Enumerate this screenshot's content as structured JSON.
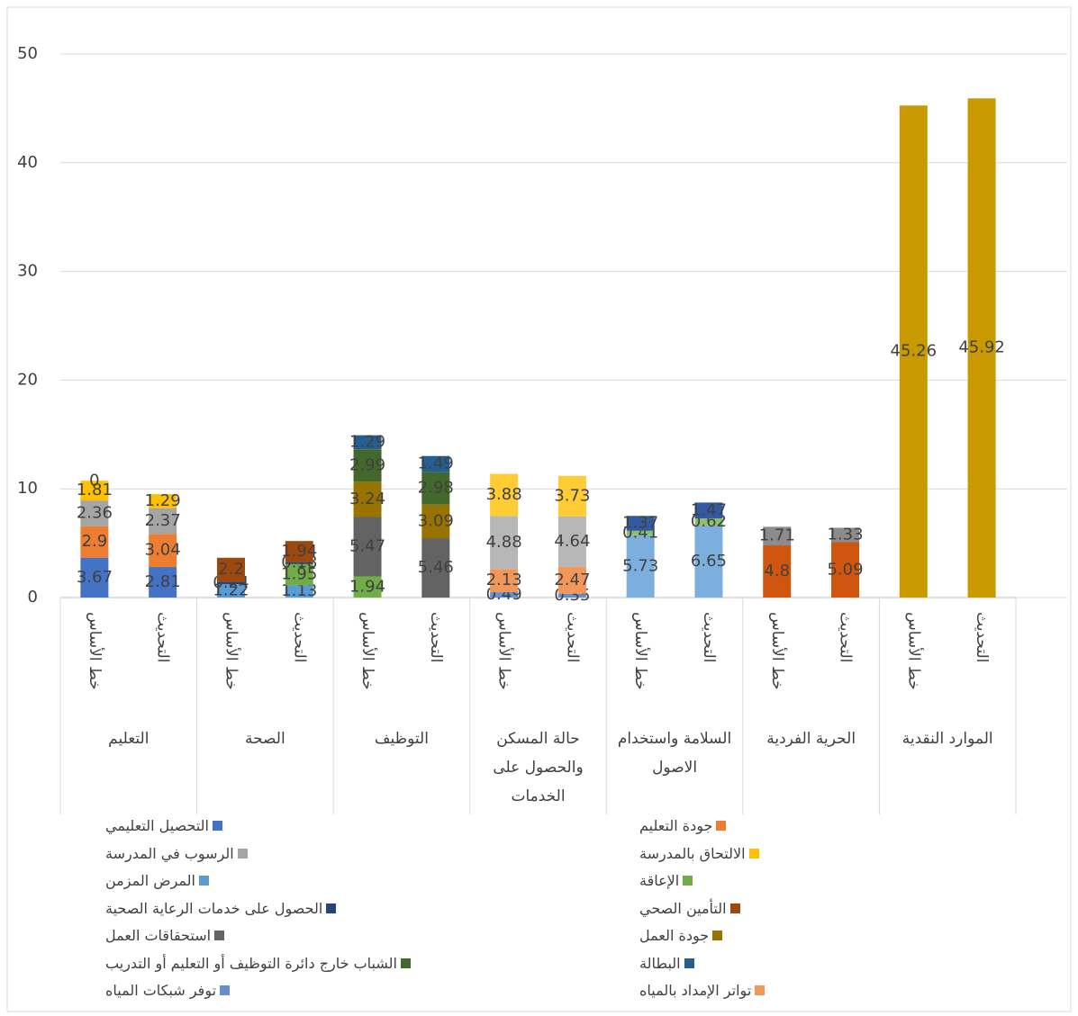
{
  "chart_data": {
    "type": "stacked_bar",
    "groups": [
      "التعليم",
      "الصحة",
      "التوظيف",
      "حالة المسكن والحصول على الخدمات",
      "السلامة واستخدام الاصول",
      "الحرية الفردية",
      "الموارد النقدية"
    ],
    "categories": [
      "خط الأساس",
      "التحديث",
      "خط الأساس",
      "التحديث",
      "خط الأساس",
      "التحديث",
      "خط الأساس",
      "التحديث",
      "خط الأساس",
      "التحديث",
      "خط الأساس",
      "التحديث",
      "خط الأساس",
      "التحديث"
    ],
    "ylim": [
      0,
      50
    ],
    "yticks": [
      0,
      10,
      20,
      30,
      40,
      50
    ],
    "grid": true,
    "series": [
      {
        "name": "التحصيل التعليمي",
        "color": "#4472c4",
        "values": [
          3.67,
          2.81,
          null,
          null,
          null,
          null,
          null,
          null,
          null,
          null,
          null,
          null,
          null,
          null
        ]
      },
      {
        "name": "جودة التعليم",
        "color": "#ed7d31",
        "values": [
          2.9,
          3.04,
          null,
          null,
          null,
          null,
          null,
          null,
          null,
          null,
          null,
          null,
          null,
          null
        ]
      },
      {
        "name": "الرسوب في المدرسة",
        "color": "#a5a5a5",
        "values": [
          2.36,
          2.37,
          null,
          null,
          null,
          null,
          null,
          null,
          null,
          null,
          null,
          null,
          null,
          null
        ]
      },
      {
        "name": "الالتحاق بالمدرسة",
        "color": "#ffc000",
        "values": [
          1.81,
          1.29,
          null,
          null,
          null,
          null,
          null,
          null,
          null,
          null,
          null,
          null,
          null,
          null
        ]
      },
      {
        "name": "المرض المزمن",
        "color": "#5b9bd5",
        "values": [
          null,
          null,
          1.22,
          1.13,
          null,
          null,
          null,
          null,
          null,
          null,
          null,
          null,
          null,
          null
        ]
      },
      {
        "name": "الإعاقة",
        "color": "#70ad47",
        "values": [
          null,
          null,
          null,
          1.95,
          1.94,
          null,
          null,
          null,
          null,
          null,
          null,
          null,
          null,
          null
        ]
      },
      {
        "name": "الحصول على خدمات الرعاية الصحية",
        "color": "#264478",
        "values": [
          null,
          null,
          0.24,
          0.18,
          null,
          null,
          null,
          null,
          null,
          null,
          null,
          null,
          null,
          null
        ]
      },
      {
        "name": "التأمين الصحي",
        "color": "#9e480e",
        "values": [
          null,
          null,
          2.2,
          1.94,
          null,
          null,
          null,
          null,
          null,
          null,
          null,
          null,
          null,
          null
        ]
      },
      {
        "name": "استحقاقات العمل",
        "color": "#636363",
        "values": [
          null,
          null,
          null,
          null,
          5.47,
          5.46,
          null,
          null,
          null,
          null,
          null,
          null,
          null,
          null
        ]
      },
      {
        "name": "جودة العمل",
        "color": "#997300",
        "values": [
          null,
          null,
          null,
          null,
          3.24,
          3.09,
          null,
          null,
          null,
          null,
          null,
          null,
          null,
          null
        ]
      },
      {
        "name": "الشباب خارج دائرة التوظيف أو التعليم أو التدريب",
        "color": "#43682b",
        "values": [
          null,
          null,
          null,
          null,
          2.99,
          2.98,
          null,
          null,
          null,
          null,
          null,
          null,
          null,
          null
        ]
      },
      {
        "name": "البطالة",
        "color": "#255e91",
        "values": [
          null,
          null,
          null,
          null,
          1.29,
          1.49,
          null,
          null,
          null,
          null,
          null,
          null,
          null,
          null
        ]
      },
      {
        "name": "توفر شبكات المياه",
        "color": "#698ed0",
        "values": [
          null,
          null,
          null,
          null,
          null,
          null,
          0.49,
          0.35,
          null,
          null,
          null,
          null,
          null,
          null
        ]
      },
      {
        "name": "تواتر الإمداد بالمياه",
        "color": "#f1975a",
        "values": [
          null,
          null,
          null,
          null,
          null,
          null,
          2.13,
          2.47,
          null,
          null,
          null,
          null,
          null,
          null
        ]
      },
      {
        "color": "#b7b7b7",
        "values": [
          0,
          null,
          null,
          null,
          null,
          null,
          null,
          null,
          null,
          null,
          null,
          null,
          null,
          null
        ]
      },
      {
        "color": "#b7b7b7",
        "values": [
          null,
          null,
          null,
          null,
          null,
          null,
          4.88,
          4.64,
          null,
          null,
          null,
          null,
          null,
          null
        ]
      },
      {
        "color": "#ffcd33",
        "values": [
          null,
          null,
          null,
          null,
          null,
          null,
          3.88,
          3.73,
          null,
          null,
          null,
          null,
          null,
          null
        ]
      },
      {
        "color": "#7cafdd",
        "values": [
          null,
          null,
          null,
          null,
          null,
          null,
          null,
          null,
          5.73,
          6.65,
          null,
          null,
          null,
          null
        ]
      },
      {
        "color": "#8cc168",
        "values": [
          null,
          null,
          null,
          null,
          null,
          null,
          null,
          null,
          0.41,
          0.62,
          null,
          null,
          null,
          null
        ]
      },
      {
        "color": "#335aa1",
        "values": [
          null,
          null,
          null,
          null,
          null,
          null,
          null,
          null,
          1.37,
          1.47,
          null,
          null,
          null,
          null
        ]
      },
      {
        "color": "#d0560f",
        "values": [
          null,
          null,
          null,
          null,
          null,
          null,
          null,
          null,
          null,
          null,
          4.8,
          5.09,
          null,
          null
        ]
      },
      {
        "color": "#8c8c8c",
        "values": [
          null,
          null,
          null,
          null,
          null,
          null,
          null,
          null,
          null,
          null,
          1.71,
          1.33,
          null,
          null
        ]
      },
      {
        "color": "#c89a00",
        "values": [
          null,
          null,
          null,
          null,
          null,
          null,
          null,
          null,
          null,
          null,
          null,
          null,
          45.26,
          45.92
        ]
      }
    ]
  }
}
